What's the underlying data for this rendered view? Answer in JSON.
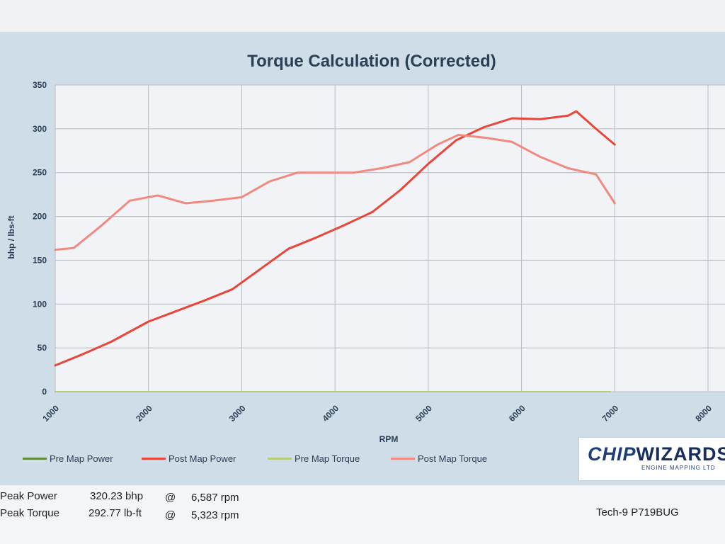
{
  "chart_data": {
    "type": "line",
    "title": "Torque Calculation (Corrected)",
    "xlabel": "RPM",
    "ylabel": "bhp / lbs-ft",
    "xlim": [
      1000,
      8000
    ],
    "ylim": [
      0,
      350
    ],
    "x_ticks": [
      "1000",
      "2000",
      "3000",
      "4000",
      "5000",
      "6000",
      "7000",
      "8000"
    ],
    "y_ticks": [
      "0",
      "50",
      "100",
      "150",
      "200",
      "250",
      "300",
      "350"
    ],
    "grid": true,
    "legend_position": "bottom",
    "series": [
      {
        "name": "Pre Map Power",
        "color": "#5f8a3a",
        "x": [
          1000,
          6950
        ],
        "y": [
          0,
          0
        ]
      },
      {
        "name": "Post Map Power",
        "color": "#e8463a",
        "x": [
          1000,
          1300,
          1600,
          2000,
          2300,
          2600,
          2900,
          3200,
          3500,
          3800,
          4100,
          4400,
          4700,
          5000,
          5300,
          5600,
          5900,
          6200,
          6500,
          6587,
          6800,
          7000
        ],
        "y": [
          30,
          43,
          57,
          80,
          92,
          104,
          117,
          140,
          163,
          176,
          190,
          205,
          230,
          260,
          287,
          302,
          312,
          311,
          315,
          320,
          300,
          282
        ]
      },
      {
        "name": "Pre Map Torque",
        "color": "#b5cc7a",
        "x": [
          1000,
          6950
        ],
        "y": [
          0,
          0
        ]
      },
      {
        "name": "Post Map Torque",
        "color": "#f08a80",
        "x": [
          1000,
          1200,
          1500,
          1800,
          2100,
          2400,
          2700,
          3000,
          3300,
          3600,
          3900,
          4200,
          4500,
          4800,
          5100,
          5323,
          5600,
          5900,
          6200,
          6500,
          6800,
          7000
        ],
        "y": [
          162,
          164,
          190,
          218,
          224,
          215,
          218,
          222,
          240,
          250,
          250,
          250,
          255,
          262,
          282,
          293,
          290,
          285,
          268,
          255,
          248,
          215
        ]
      }
    ]
  },
  "logo": {
    "part1": "CHIP",
    "part2": "WIZARDS",
    "sub": "ENGINE MAPPING LTD"
  },
  "footer": {
    "rows": [
      {
        "label": "Peak Power",
        "value": "320.23 bhp",
        "at": "@",
        "rpm": "6,587 rpm"
      },
      {
        "label": "Peak Torque",
        "value": "292.77 lb-ft",
        "at": "@",
        "rpm": "5,323 rpm"
      }
    ],
    "vehicle": "Tech-9 P719BUG"
  }
}
